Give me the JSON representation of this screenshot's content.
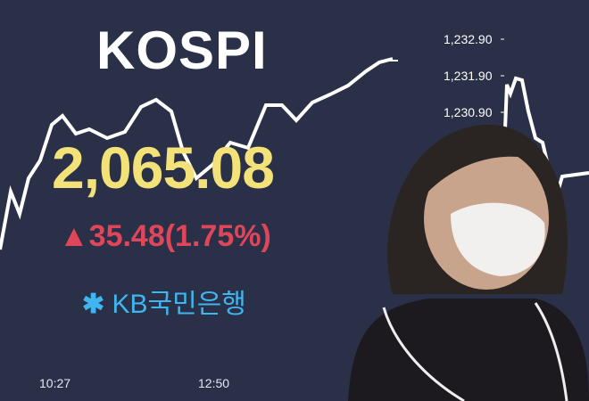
{
  "board": {
    "title": "KOSPI",
    "index_value": "2,065.08",
    "change_icon": "triangle-up-icon",
    "change": "35.48(1.75%)",
    "bank_logo_text": "KB국민은행",
    "colors": {
      "background": "#2b3049",
      "value": "#f3e27a",
      "change": "#e0465a",
      "logo": "#3fb6ef"
    }
  },
  "secondary_chart": {
    "y_ticks": [
      "1,232.90",
      "1,231.90",
      "1,230.90"
    ]
  },
  "time_axis": [
    "10:27",
    "12:50"
  ]
}
